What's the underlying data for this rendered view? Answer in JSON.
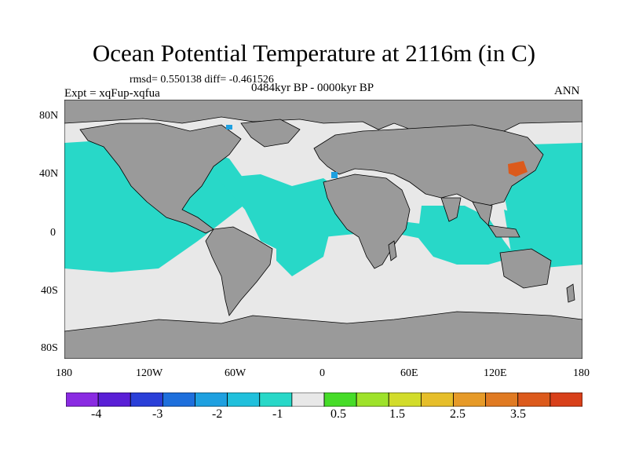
{
  "figure": {
    "title": "Ocean Potential Temperature at 2116m (in C)",
    "stats": "rmsd= 0.550138 diff= -0.461526",
    "experiment": "Expt = xqFup-xqfua",
    "period": "0484kyr BP - 0000kyr BP",
    "season": "ANN"
  },
  "axes": {
    "lat_labels": [
      "80N",
      "40N",
      "0",
      "40S",
      "80S"
    ],
    "lon_labels": [
      "180",
      "120W",
      "60W",
      "0",
      "60E",
      "120E",
      "180"
    ]
  },
  "colorbar": {
    "colors": [
      "#8a2be2",
      "#5a1fd6",
      "#2a3fd8",
      "#1e6fdc",
      "#1ea0e0",
      "#20c0dc",
      "#28d8c8",
      "#e8e8e8",
      "#46dc28",
      "#9ee22a",
      "#d2dc2a",
      "#e6be2a",
      "#e69a28",
      "#e07a22",
      "#dc5a1c",
      "#d8401a"
    ],
    "labels": [
      "-4",
      "-3",
      "-2",
      "-1",
      "0.5",
      "1.5",
      "2.5",
      "3.5"
    ]
  },
  "map_colors": {
    "land": "#9a9a9a",
    "neg1": "#28d8c8",
    "neutral": "#e8e8e8",
    "blue": "#1ea0e0",
    "red": "#dc5a1c"
  }
}
